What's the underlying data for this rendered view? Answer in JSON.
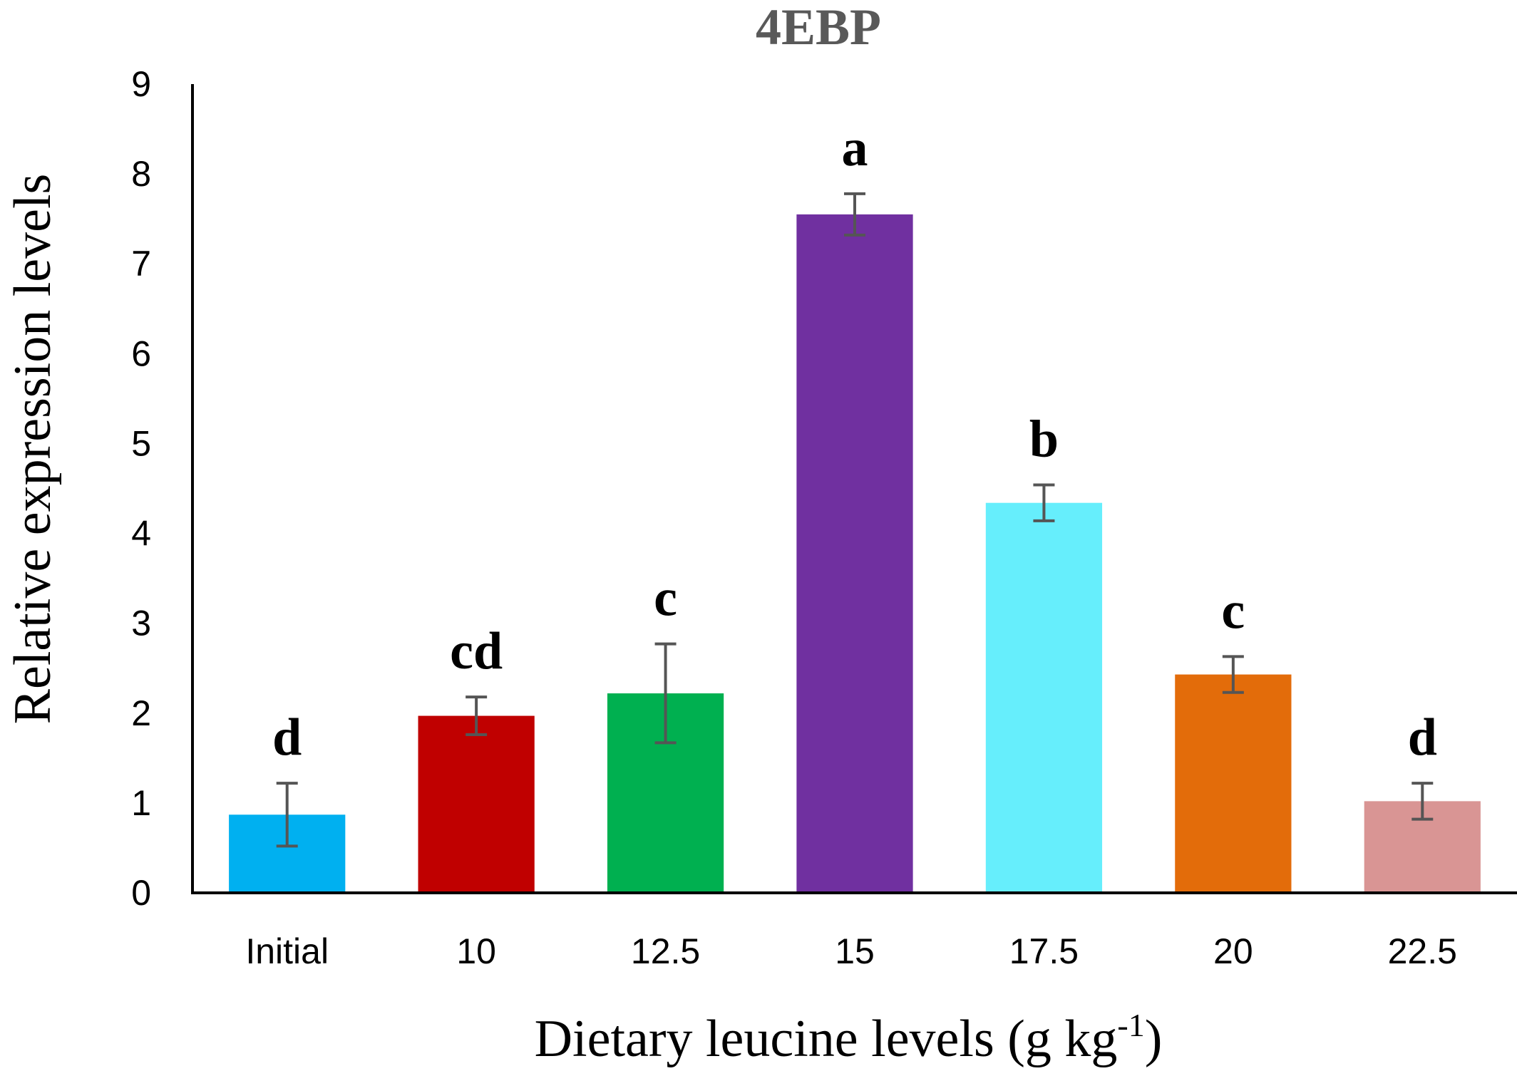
{
  "chart_data": {
    "type": "bar",
    "title": "4EBP",
    "xlabel": "Dietary leucine levels (g kg",
    "xlabel_superscript": "-1",
    "xlabel_suffix": ")",
    "ylabel": "Relative expression levels",
    "ylim": [
      0,
      9
    ],
    "yticks": [
      0,
      1,
      2,
      3,
      4,
      5,
      6,
      7,
      8,
      9
    ],
    "grid": false,
    "legend": "none",
    "categories": [
      "Initial",
      "10",
      "12.5",
      "15",
      "17.5",
      "20",
      "22.5"
    ],
    "values": [
      0.87,
      1.97,
      2.22,
      7.55,
      4.34,
      2.43,
      1.02
    ],
    "errors": [
      0.35,
      0.21,
      0.55,
      0.23,
      0.2,
      0.2,
      0.2
    ],
    "significance": [
      "d",
      "cd",
      "c",
      "a",
      "b",
      "c",
      "d"
    ],
    "colors": [
      "#00B0F0",
      "#C00000",
      "#00B050",
      "#7030A0",
      "#66EEFC",
      "#E36C0A",
      "#D99594"
    ]
  }
}
